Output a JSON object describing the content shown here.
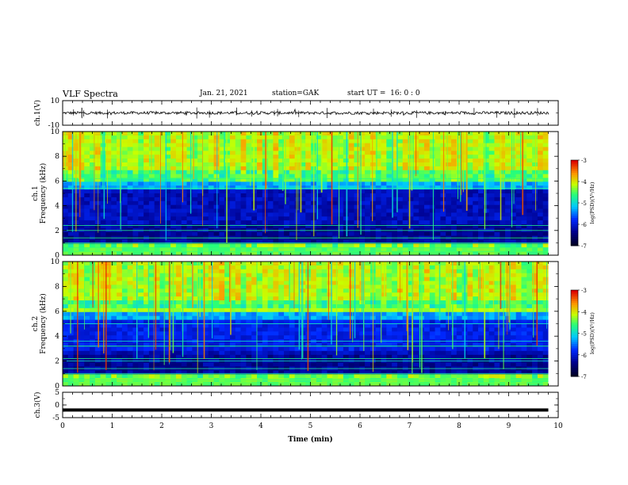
{
  "header": {
    "title": "VLF Spectra",
    "date": "Jan. 21, 2021",
    "station": "station=GAK",
    "start": "start UT =  16: 0 : 0"
  },
  "chart_data": [
    {
      "type": "line",
      "name": "ch1-waveform",
      "ylabel": "ch.1(V)",
      "ylim": [
        -10,
        10
      ],
      "yticks": [
        "10",
        "-10"
      ],
      "xlim": [
        0,
        10
      ],
      "baseline": 0,
      "noise_amplitude": 1.2
    },
    {
      "type": "heatmap",
      "name": "ch1-spectrogram",
      "ylabel_line1": "ch.1",
      "ylabel_line2": "Frequency (kHz)",
      "ylim": [
        0,
        10
      ],
      "yticks": [
        "0",
        "2",
        "4",
        "6",
        "8",
        "10"
      ],
      "xlim": [
        0,
        10
      ],
      "data_end_min": 9.8,
      "colorbar": {
        "label": "log(PSD)(V²/Hz)",
        "range": [
          -7,
          -3
        ],
        "ticks": [
          "-3",
          "-4",
          "-5",
          "-6",
          "-7"
        ]
      }
    },
    {
      "type": "heatmap",
      "name": "ch2-spectrogram",
      "ylabel_line1": "ch.2",
      "ylabel_line2": "Frequency (kHz)",
      "ylim": [
        0,
        10
      ],
      "yticks": [
        "0",
        "2",
        "4",
        "6",
        "8",
        "10"
      ],
      "xlim": [
        0,
        10
      ],
      "data_end_min": 9.8,
      "colorbar": {
        "label": "log(PSD)(V²/Hz)",
        "range": [
          -7,
          -3
        ],
        "ticks": [
          "-3",
          "-4",
          "-5",
          "-6",
          "-7"
        ]
      }
    },
    {
      "type": "line",
      "name": "ch3-waveform",
      "ylabel": "ch.3(V)",
      "ylim": [
        -5,
        5
      ],
      "yticks": [
        "5",
        "0",
        "-5"
      ],
      "xlim": [
        0,
        10
      ],
      "baseline": -2
    }
  ],
  "xaxis": {
    "label": "Time (min)",
    "ticks": [
      "0",
      "1",
      "2",
      "3",
      "4",
      "5",
      "6",
      "7",
      "8",
      "9",
      "10"
    ]
  }
}
